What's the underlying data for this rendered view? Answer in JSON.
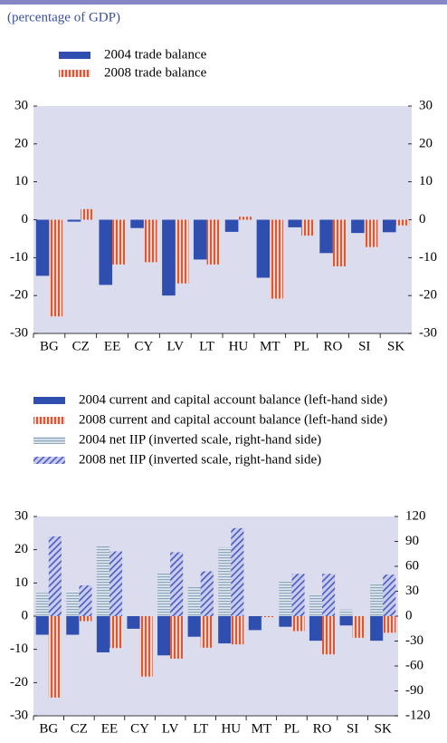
{
  "chart_data": [
    {
      "type": "bar",
      "subtitle": "(percentage of GDP)",
      "categories": [
        "BG",
        "CZ",
        "EE",
        "CY",
        "LV",
        "LT",
        "HU",
        "MT",
        "PL",
        "RO",
        "SI",
        "SK"
      ],
      "series": [
        {
          "name": "2004 trade balance",
          "color": "#2f4fb0",
          "pattern": "solid",
          "values": [
            -14.8,
            -0.5,
            -17.2,
            -2.2,
            -20,
            -10.5,
            -3.2,
            -15.3,
            -2.0,
            -8.8,
            -3.5,
            -3.3
          ]
        },
        {
          "name": "2008 trade balance",
          "color": "#d9573a",
          "pattern": "vertical",
          "values": [
            -25.5,
            2.8,
            -11.8,
            -11.2,
            -16.8,
            -11.8,
            0.8,
            -20.8,
            -4.2,
            -12.3,
            -7.2,
            -1.5
          ]
        }
      ],
      "ylim": [
        -30,
        30
      ],
      "yticks": [
        -30,
        -20,
        -10,
        0,
        10,
        20,
        30
      ],
      "y2lim": [
        -30,
        30
      ],
      "y2ticks": [
        -30,
        -20,
        -10,
        0,
        10,
        20,
        30
      ]
    },
    {
      "type": "bar",
      "categories": [
        "BG",
        "CZ",
        "EE",
        "CY",
        "LV",
        "LT",
        "HU",
        "MT",
        "PL",
        "RO",
        "SI",
        "SK"
      ],
      "series": [
        {
          "name": "2004 current and capital account balance (left-hand side)",
          "color": "#2f4fb0",
          "pattern": "solid",
          "values": [
            -5.6,
            -5.6,
            -10.9,
            -3.8,
            -11.8,
            -6.2,
            -8.2,
            -4.2,
            -3.2,
            -7.4,
            -2.8,
            -7.4
          ]
        },
        {
          "name": "2008 current and capital account balance (left-hand side)",
          "color": "#d9573a",
          "pattern": "vertical",
          "values": [
            -24.5,
            -1.5,
            -9.6,
            -18.2,
            -12.8,
            -9.5,
            -8.5,
            -0.3,
            -4.5,
            -11.5,
            -6.5,
            -5.0
          ]
        },
        {
          "name": "2004 net IIP (inverted scale, right-hand side)",
          "color": "#8fa6bf",
          "pattern": "horizontal",
          "axis": "y2",
          "values": [
            28,
            30,
            84,
            null,
            52,
            35,
            83,
            null,
            42,
            26,
            8,
            39
          ]
        },
        {
          "name": "2008 net IIP (inverted scale, right-hand side)",
          "color": "#4a5cc0",
          "pattern": "diagonal",
          "axis": "y2",
          "values": [
            96,
            37,
            78,
            null,
            77,
            54,
            106,
            null,
            51,
            51,
            null,
            50
          ]
        }
      ],
      "ylim": [
        -30,
        30
      ],
      "yticks": [
        -30,
        -20,
        -10,
        0,
        10,
        20,
        30
      ],
      "y2lim": [
        -120,
        120
      ],
      "y2ticks": [
        -120,
        -90,
        -60,
        -30,
        0,
        30,
        60,
        90,
        120
      ]
    }
  ]
}
